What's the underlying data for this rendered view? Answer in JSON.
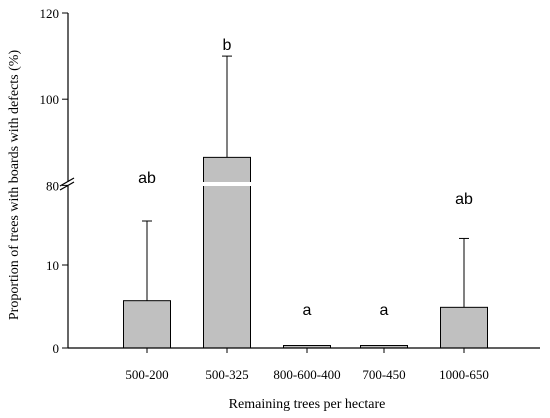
{
  "chart_data": {
    "type": "bar",
    "xlabel": "Remaining trees per hectare",
    "ylabel": "Proportion of trees with boards with defects (%)",
    "categories": [
      "500-200",
      "500-325",
      "800-600-400",
      "700-450",
      "1000-650"
    ],
    "values": [
      5.7,
      86.5,
      0.3,
      0.3,
      4.9
    ],
    "error_upper": [
      15.3,
      110,
      null,
      null,
      13.2
    ],
    "significance_letters": [
      "ab",
      "b",
      "a",
      "a",
      "ab"
    ],
    "y_axis": {
      "broken": true,
      "lower_segment": {
        "range": [
          0,
          20
        ],
        "ticks": [
          0,
          10
        ]
      },
      "upper_segment": {
        "range": [
          78,
          120
        ],
        "ticks": [
          80,
          100,
          120
        ]
      }
    },
    "tick_labels": {
      "y": [
        "0",
        "10",
        "80",
        "100",
        "120"
      ]
    },
    "colors": {
      "bar_fill": "#c0c0c0",
      "bar_stroke": "#000000"
    },
    "grid": false,
    "legend": "none"
  }
}
